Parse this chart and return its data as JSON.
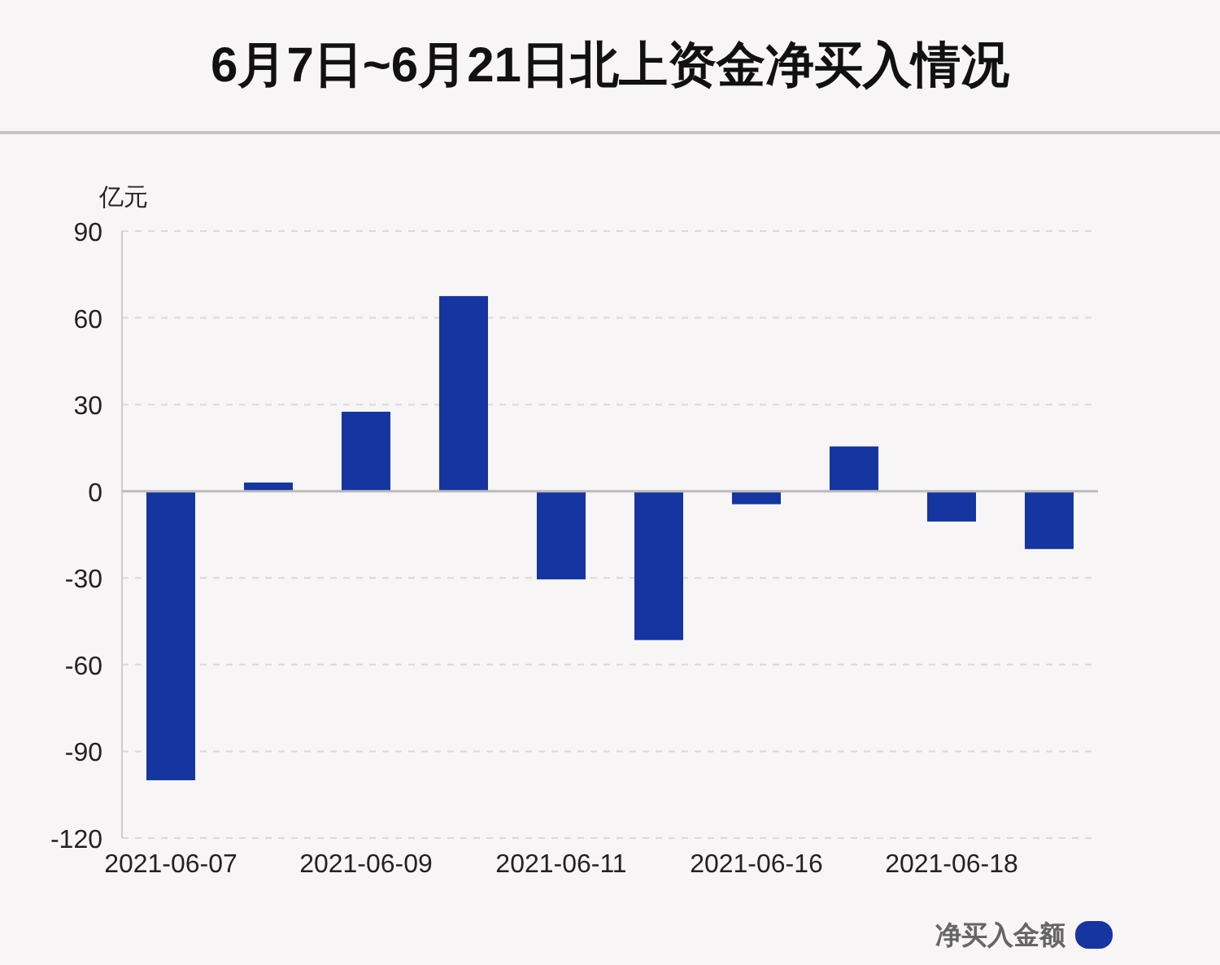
{
  "chart_data": {
    "type": "bar",
    "title": "6月7日~6月21日北上资金净买入情况",
    "ylabel": "亿元",
    "categories": [
      "2021-06-07",
      null,
      "2021-06-09",
      null,
      "2021-06-11",
      null,
      "2021-06-16",
      null,
      "2021-06-18",
      null
    ],
    "series": [
      {
        "name": "净买入金额",
        "color": "#1536a0",
        "values": [
          -100,
          3,
          27.5,
          67.5,
          -30.5,
          -51.5,
          -4.5,
          15.5,
          -10.5,
          -20
        ]
      }
    ],
    "ylim": [
      -120,
      90
    ],
    "yticks": [
      -120,
      -90,
      -60,
      -30,
      0,
      30,
      60,
      90
    ],
    "grid": "y",
    "legend": "bottom right"
  }
}
